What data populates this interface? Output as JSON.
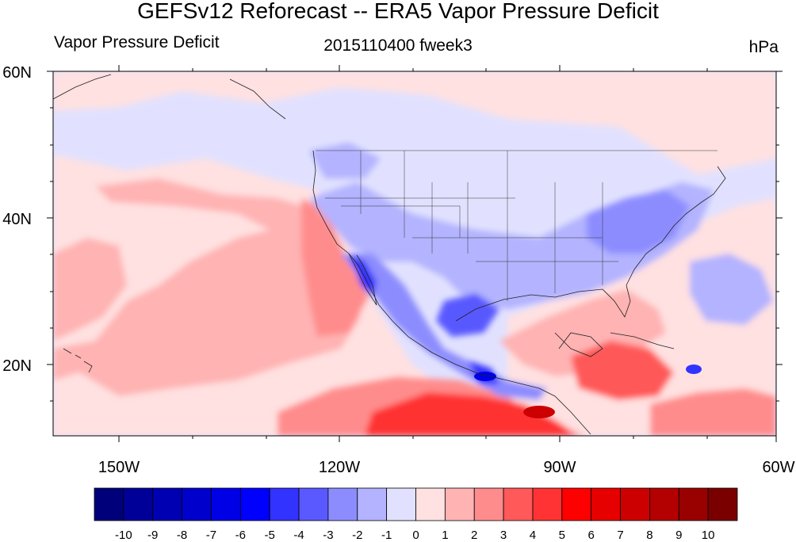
{
  "title": "GEFSv12 Reforecast -- ERA5 Vapor Pressure Deficit",
  "subtitle_left": "Vapor Pressure Deficit",
  "subtitle_center": "2015110400 fweek3",
  "subtitle_right": "hPa",
  "map": {
    "region": "Continental United States and surrounding oceans",
    "lon_range": [
      -160,
      -60
    ],
    "lat_range": [
      10,
      60
    ],
    "y_tick_labels": [
      "60N",
      "40N",
      "20N"
    ],
    "x_tick_labels": [
      "150W",
      "120W",
      "90W",
      "60W"
    ]
  },
  "colorbar": {
    "labels": [
      "-10",
      "-9",
      "-8",
      "-7",
      "-6",
      "-5",
      "-4",
      "-3",
      "-2",
      "-1",
      "0",
      "1",
      "2",
      "3",
      "4",
      "5",
      "6",
      "7",
      "8",
      "9",
      "10"
    ],
    "colors": [
      "#00007a",
      "#000099",
      "#0000b3",
      "#0000cc",
      "#0000e6",
      "#0000ff",
      "#3333ff",
      "#5959ff",
      "#8c8cff",
      "#b3b3ff",
      "#e1e1ff",
      "#ffe1e1",
      "#ffb3b3",
      "#ff8c8c",
      "#ff5959",
      "#ff3333",
      "#ff0000",
      "#e60000",
      "#cc0000",
      "#b30000",
      "#990000",
      "#7a0000"
    ]
  }
}
